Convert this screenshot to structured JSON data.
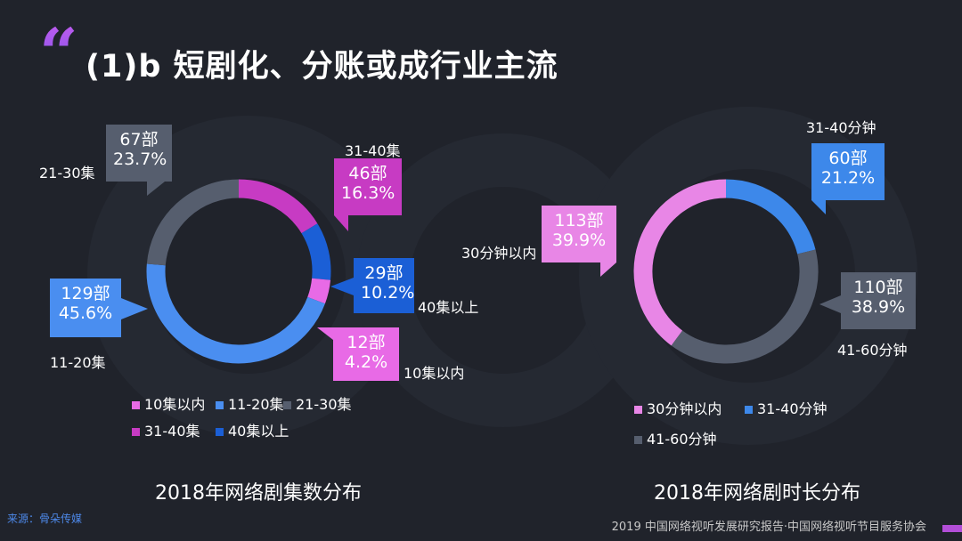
{
  "header": {
    "title": "(1)b 短剧化、分账或成行业主流"
  },
  "source": "来源：骨朵传媒",
  "footer": "2019 中国网络视听发展研究报告·中国网络视听节目服务协会",
  "chart_data": [
    {
      "type": "pie",
      "title": "2018年网络剧集数分布",
      "slices": [
        {
          "label": "10集以内",
          "count": "12部",
          "percent": "4.2%",
          "value": 4.2,
          "color": "#e86ae6"
        },
        {
          "label": "11-20集",
          "count": "129部",
          "percent": "45.6%",
          "value": 45.6,
          "color": "#4a8ef0"
        },
        {
          "label": "21-30集",
          "count": "67部",
          "percent": "23.7%",
          "value": 23.7,
          "color": "#565e6e"
        },
        {
          "label": "31-40集",
          "count": "46部",
          "percent": "16.3%",
          "value": 16.3,
          "color": "#c73bc3"
        },
        {
          "label": "40集以上",
          "count": "29部",
          "percent": "10.2%",
          "value": 10.2,
          "color": "#1b5fd6"
        }
      ],
      "legend": [
        "10集以内",
        "11-20集",
        "21-30集",
        "31-40集",
        "40集以上"
      ]
    },
    {
      "type": "pie",
      "title": "2018年网络剧时长分布",
      "slices": [
        {
          "label": "30分钟以内",
          "count": "113部",
          "percent": "39.9%",
          "value": 39.9,
          "color": "#e886e6"
        },
        {
          "label": "31-40分钟",
          "count": "60部",
          "percent": "21.2%",
          "value": 21.2,
          "color": "#3d88ea"
        },
        {
          "label": "41-60分钟",
          "count": "110部",
          "percent": "38.9%",
          "value": 38.9,
          "color": "#565e6e"
        }
      ],
      "legend": [
        "30分钟以内",
        "31-40分钟",
        "41-60分钟"
      ]
    }
  ]
}
